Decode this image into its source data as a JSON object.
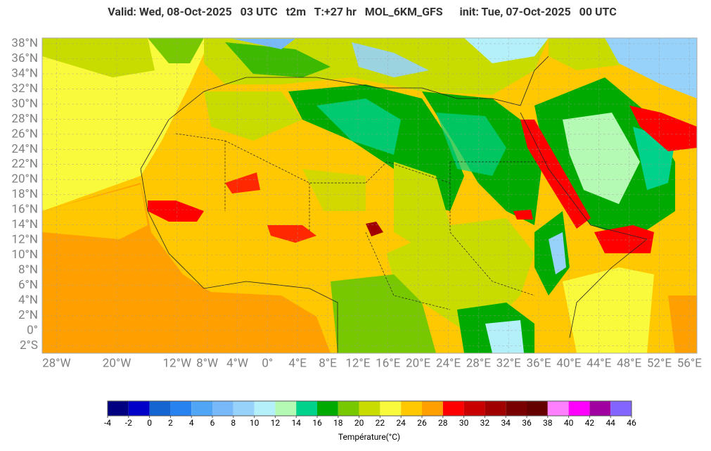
{
  "header": {
    "title": "Valid: Wed, 08-Oct-2025   03 UTC   t2m   T:+27 hr   MOL_6KM_GFS      init: Tue, 07-Oct-2025   00 UTC"
  },
  "map": {
    "lon_range": [
      -29.9,
      57
    ],
    "lat_range": [
      -3,
      38.75
    ],
    "lat_ticks": [
      {
        "value": 38,
        "label": "38°N"
      },
      {
        "value": 36,
        "label": "36°N"
      },
      {
        "value": 34,
        "label": "34°N"
      },
      {
        "value": 32,
        "label": "32°N"
      },
      {
        "value": 30,
        "label": "30°N"
      },
      {
        "value": 28,
        "label": "28°N"
      },
      {
        "value": 26,
        "label": "26°N"
      },
      {
        "value": 24,
        "label": "24°N"
      },
      {
        "value": 22,
        "label": "22°N"
      },
      {
        "value": 20,
        "label": "20°N"
      },
      {
        "value": 18,
        "label": "18°N"
      },
      {
        "value": 16,
        "label": "16°N"
      },
      {
        "value": 14,
        "label": "14°N"
      },
      {
        "value": 12,
        "label": "12°N"
      },
      {
        "value": 10,
        "label": "10°N"
      },
      {
        "value": 8,
        "label": "8°N"
      },
      {
        "value": 6,
        "label": "6°N"
      },
      {
        "value": 4,
        "label": "4°N"
      },
      {
        "value": 2,
        "label": "2°N"
      },
      {
        "value": 0,
        "label": "0°"
      },
      {
        "value": -2,
        "label": "2°S"
      }
    ],
    "lon_ticks": [
      {
        "value": -28,
        "label": "28°W"
      },
      {
        "value": -20,
        "label": "20°W"
      },
      {
        "value": -12,
        "label": "12°W"
      },
      {
        "value": -8,
        "label": "8°W"
      },
      {
        "value": -4,
        "label": "4°W"
      },
      {
        "value": 0,
        "label": "0°"
      },
      {
        "value": 4,
        "label": "4°E"
      },
      {
        "value": 8,
        "label": "8°E"
      },
      {
        "value": 12,
        "label": "12°E"
      },
      {
        "value": 16,
        "label": "16°E"
      },
      {
        "value": 20,
        "label": "20°E"
      },
      {
        "value": 24,
        "label": "24°E"
      },
      {
        "value": 28,
        "label": "28°E"
      },
      {
        "value": 32,
        "label": "32°E"
      },
      {
        "value": 36,
        "label": "36°E"
      },
      {
        "value": 40,
        "label": "40°E"
      },
      {
        "value": 44,
        "label": "44°E"
      },
      {
        "value": 48,
        "label": "48°E"
      },
      {
        "value": 52,
        "label": "52°E"
      },
      {
        "value": 56,
        "label": "56°E"
      }
    ]
  },
  "colorbar": {
    "ticks": [
      -4,
      -2,
      0,
      2,
      4,
      6,
      8,
      10,
      12,
      14,
      16,
      18,
      20,
      22,
      24,
      26,
      28,
      30,
      32,
      34,
      36,
      38,
      40,
      42,
      44,
      46
    ],
    "colors": [
      "#000080",
      "#0000c8",
      "#1464d2",
      "#2882f0",
      "#50a5f5",
      "#78b9fa",
      "#96d2fa",
      "#b4f0fa",
      "#b4fab4",
      "#00d28c",
      "#00aa00",
      "#78c800",
      "#c8dc00",
      "#fafa3c",
      "#ffc800",
      "#ffa000",
      "#ff0000",
      "#c80000",
      "#a00000",
      "#780000",
      "#640000",
      "#ff80ff",
      "#ff00ff",
      "#a000a0",
      "#8264ff"
    ],
    "label": "Température(°C)"
  }
}
